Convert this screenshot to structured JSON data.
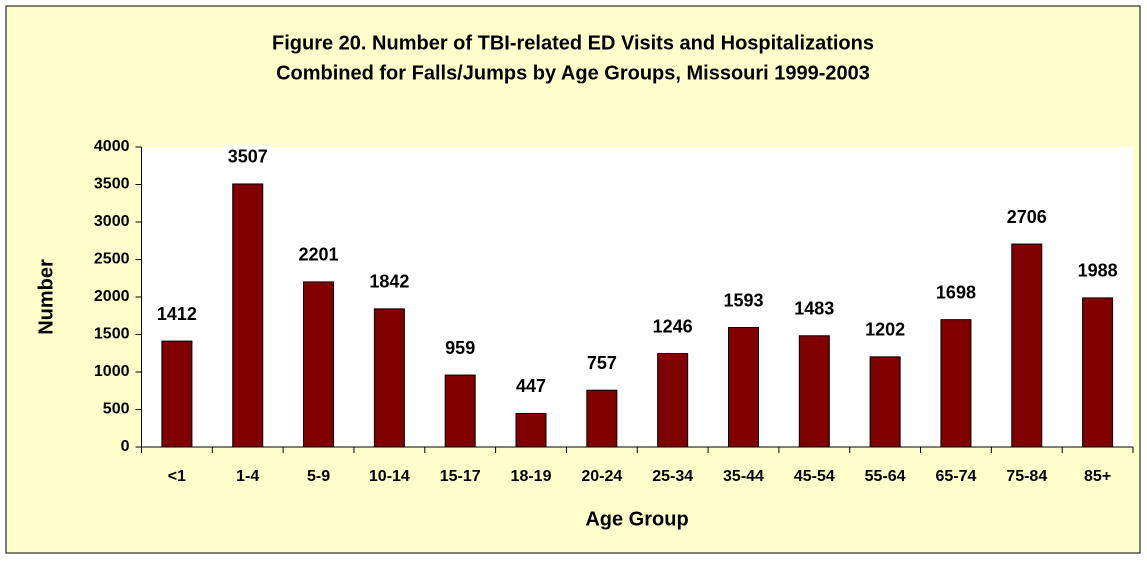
{
  "chart_data": {
    "type": "bar",
    "title": [
      "Figure 20. Number of TBI-related ED Visits and Hospitalizations",
      "Combined for Falls/Jumps by Age Groups, Missouri 1999-2003"
    ],
    "x_label": "Age Group",
    "y_label": "Number",
    "categories": [
      "<1",
      "1-4",
      "5-9",
      "10-14",
      "15-17",
      "18-19",
      "20-24",
      "25-34",
      "35-44",
      "45-54",
      "55-64",
      "65-74",
      "75-84",
      "85+"
    ],
    "values": [
      1412,
      3507,
      2201,
      1842,
      959,
      447,
      757,
      1246,
      1593,
      1483,
      1202,
      1698,
      2706,
      1988
    ],
    "color": "#800000",
    "ylim": [
      0,
      4000
    ],
    "yticks": [
      0,
      500,
      1000,
      1500,
      2000,
      2500,
      3000,
      3500,
      4000
    ],
    "grid": false
  }
}
